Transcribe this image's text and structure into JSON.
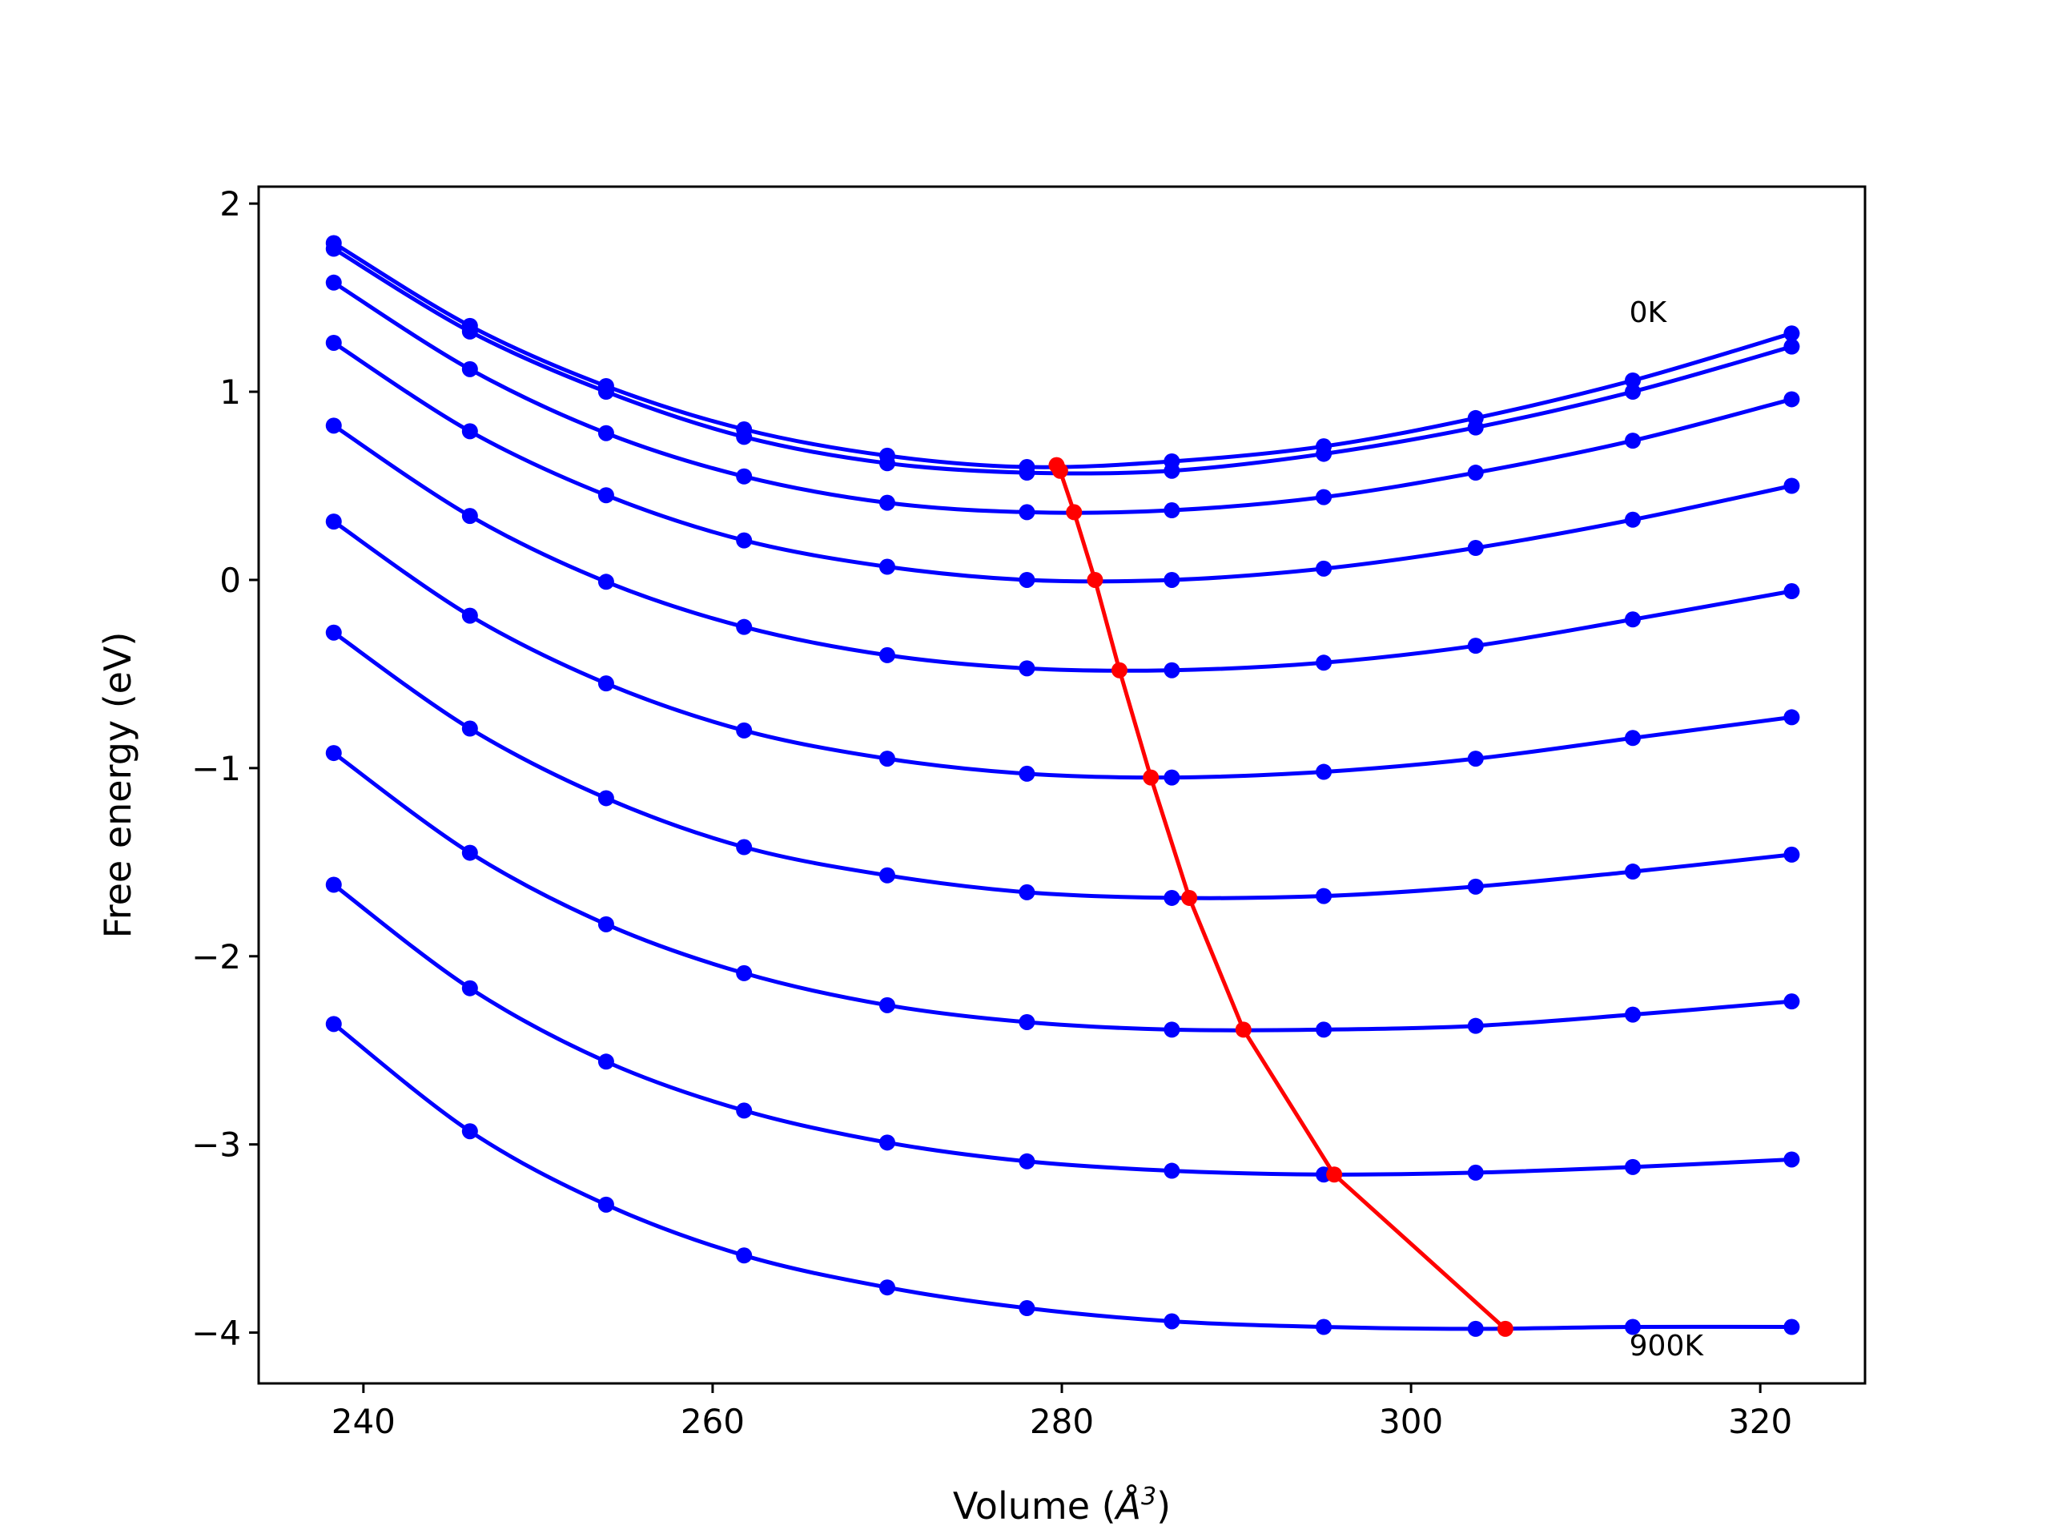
{
  "chart_data": {
    "type": "line",
    "title": "",
    "xlabel_main": "Volume (",
    "xlabel_unit": "Å",
    "xlabel_exp": "3",
    "xlabel_end": ")",
    "ylabel": "Free energy (eV)",
    "xlim": [
      234.0,
      326.0
    ],
    "ylim": [
      -4.27,
      2.09
    ],
    "xticks": [
      240,
      260,
      280,
      300,
      320
    ],
    "yticks": [
      2,
      1,
      0,
      -1,
      -2,
      -3,
      -4
    ],
    "xtick_labels": [
      "240",
      "260",
      "280",
      "300",
      "320"
    ],
    "ytick_labels": [
      "2",
      "1",
      "0",
      "−1",
      "−2",
      "−3",
      "−4"
    ],
    "grid": false,
    "legend": "none",
    "annotations": [
      {
        "text": "0K",
        "x": 312.5,
        "y": 1.37
      },
      {
        "text": "900K",
        "x": 312.5,
        "y": -4.12
      }
    ],
    "curve_color": "#0000ff",
    "min_color": "#ff0000",
    "x": [
      238.3,
      246.1,
      253.9,
      261.8,
      270.0,
      278.0,
      286.3,
      295.0,
      303.7,
      312.7,
      321.8
    ],
    "series": [
      {
        "values": [
          1.79,
          1.35,
          1.03,
          0.8,
          0.66,
          0.6,
          0.63,
          0.71,
          0.86,
          1.06,
          1.31
        ]
      },
      {
        "values": [
          1.76,
          1.32,
          1.0,
          0.76,
          0.62,
          0.57,
          0.58,
          0.67,
          0.81,
          1.0,
          1.24
        ]
      },
      {
        "values": [
          1.58,
          1.12,
          0.78,
          0.55,
          0.41,
          0.36,
          0.37,
          0.44,
          0.57,
          0.74,
          0.96
        ]
      },
      {
        "values": [
          1.26,
          0.79,
          0.45,
          0.21,
          0.07,
          0.0,
          0.0,
          0.06,
          0.17,
          0.32,
          0.5
        ]
      },
      {
        "values": [
          0.82,
          0.34,
          -0.01,
          -0.25,
          -0.4,
          -0.47,
          -0.48,
          -0.44,
          -0.35,
          -0.21,
          -0.06
        ]
      },
      {
        "values": [
          0.31,
          -0.19,
          -0.55,
          -0.8,
          -0.95,
          -1.03,
          -1.05,
          -1.02,
          -0.95,
          -0.84,
          -0.73
        ]
      },
      {
        "values": [
          -0.28,
          -0.79,
          -1.16,
          -1.42,
          -1.57,
          -1.66,
          -1.69,
          -1.68,
          -1.63,
          -1.55,
          -1.46
        ]
      },
      {
        "values": [
          -0.92,
          -1.45,
          -1.83,
          -2.09,
          -2.26,
          -2.35,
          -2.39,
          -2.39,
          -2.37,
          -2.31,
          -2.24
        ]
      },
      {
        "values": [
          -1.62,
          -2.17,
          -2.56,
          -2.82,
          -2.99,
          -3.09,
          -3.14,
          -3.16,
          -3.15,
          -3.12,
          -3.08
        ]
      },
      {
        "values": [
          -2.36,
          -2.93,
          -3.32,
          -3.59,
          -3.76,
          -3.87,
          -3.94,
          -3.97,
          -3.98,
          -3.97,
          -3.97
        ]
      }
    ],
    "minima": {
      "x": [
        279.7,
        279.9,
        280.7,
        281.9,
        283.3,
        285.1,
        287.3,
        290.4,
        295.6,
        305.4
      ],
      "y": [
        0.61,
        0.58,
        0.36,
        0.0,
        -0.48,
        -1.05,
        -1.69,
        -2.39,
        -3.16,
        -3.98
      ]
    }
  }
}
